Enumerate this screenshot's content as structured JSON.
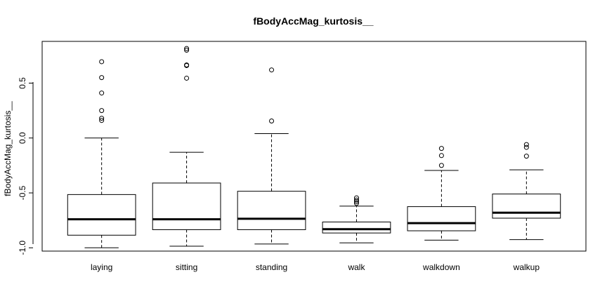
{
  "chart_data": {
    "type": "boxplot",
    "title": "fBodyAccMag_kurtosis__",
    "xlabel": "",
    "ylabel": "fBodyAccMag_kurtosis__",
    "ylim": [
      -1.03,
      0.88
    ],
    "yticks": [
      -1.0,
      -0.5,
      0.0,
      0.5
    ],
    "ytick_labels": [
      "-1.0",
      "-0.5",
      "0.0",
      "0.5"
    ],
    "grid": false,
    "categories": [
      "laying",
      "sitting",
      "standing",
      "walk",
      "walkdown",
      "walkup"
    ],
    "boxes": [
      {
        "whisker_low": -1.0,
        "q1": -0.885,
        "median": -0.74,
        "q3": -0.515,
        "whisker_high": 0.0,
        "outliers": [
          0.695,
          0.55,
          0.41,
          0.25,
          0.18,
          0.16
        ]
      },
      {
        "whisker_low": -0.985,
        "q1": -0.835,
        "median": -0.74,
        "q3": -0.41,
        "whisker_high": -0.13,
        "outliers": [
          0.815,
          0.8,
          0.665,
          0.66,
          0.545
        ]
      },
      {
        "whisker_low": -0.965,
        "q1": -0.835,
        "median": -0.735,
        "q3": -0.485,
        "whisker_high": 0.04,
        "outliers": [
          0.62,
          0.155
        ]
      },
      {
        "whisker_low": -0.955,
        "q1": -0.865,
        "median": -0.83,
        "q3": -0.765,
        "whisker_high": -0.62,
        "outliers": [
          -0.545,
          -0.565,
          -0.58,
          -0.595
        ]
      },
      {
        "whisker_low": -0.93,
        "q1": -0.845,
        "median": -0.775,
        "q3": -0.625,
        "whisker_high": -0.295,
        "outliers": [
          -0.095,
          -0.16,
          -0.25
        ]
      },
      {
        "whisker_low": -0.925,
        "q1": -0.73,
        "median": -0.68,
        "q3": -0.51,
        "whisker_high": -0.29,
        "outliers": [
          -0.06,
          -0.085,
          -0.165
        ]
      }
    ]
  }
}
